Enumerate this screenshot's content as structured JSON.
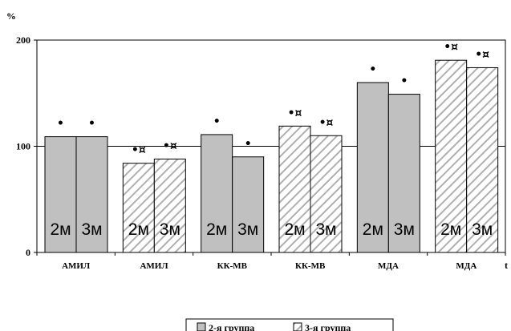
{
  "chart_data": {
    "type": "bar",
    "ylabel": "%",
    "xlabel": "t",
    "ylim": [
      0,
      200
    ],
    "yticks": [
      0,
      100,
      200
    ],
    "grid": "horizontal",
    "legend_position": "bottom-center",
    "categories": [
      "АМИЛ",
      "АМИЛ",
      "КК-МВ",
      "КК-МВ",
      "МДА",
      "МДА"
    ],
    "category_groups": [
      "2-я группа",
      "3-я группа",
      "2-я группа",
      "3-я группа",
      "2-я группа",
      "3-я группа"
    ],
    "bar_labels": [
      "2м",
      "3м"
    ],
    "series": [
      {
        "name": "2м",
        "values": [
          109,
          84,
          111,
          119,
          160,
          181
        ]
      },
      {
        "name": "3м",
        "values": [
          109,
          88,
          90,
          110,
          149,
          174
        ]
      }
    ],
    "markers": [
      [
        "•",
        "•"
      ],
      [
        "•¤",
        "•¤"
      ],
      [
        "•",
        "•"
      ],
      [
        "•¤",
        "•¤"
      ],
      [
        "•",
        "•"
      ],
      [
        "•¤",
        "•¤"
      ]
    ],
    "legend": [
      {
        "name": "2-я группа",
        "pattern": "solid"
      },
      {
        "name": "3-я группа",
        "pattern": "hatched"
      }
    ],
    "colors": {
      "solid_fill": "#c0c0c0",
      "hatch_fill": "#ffffff",
      "hatch_stroke": "#b0b0b0"
    }
  }
}
